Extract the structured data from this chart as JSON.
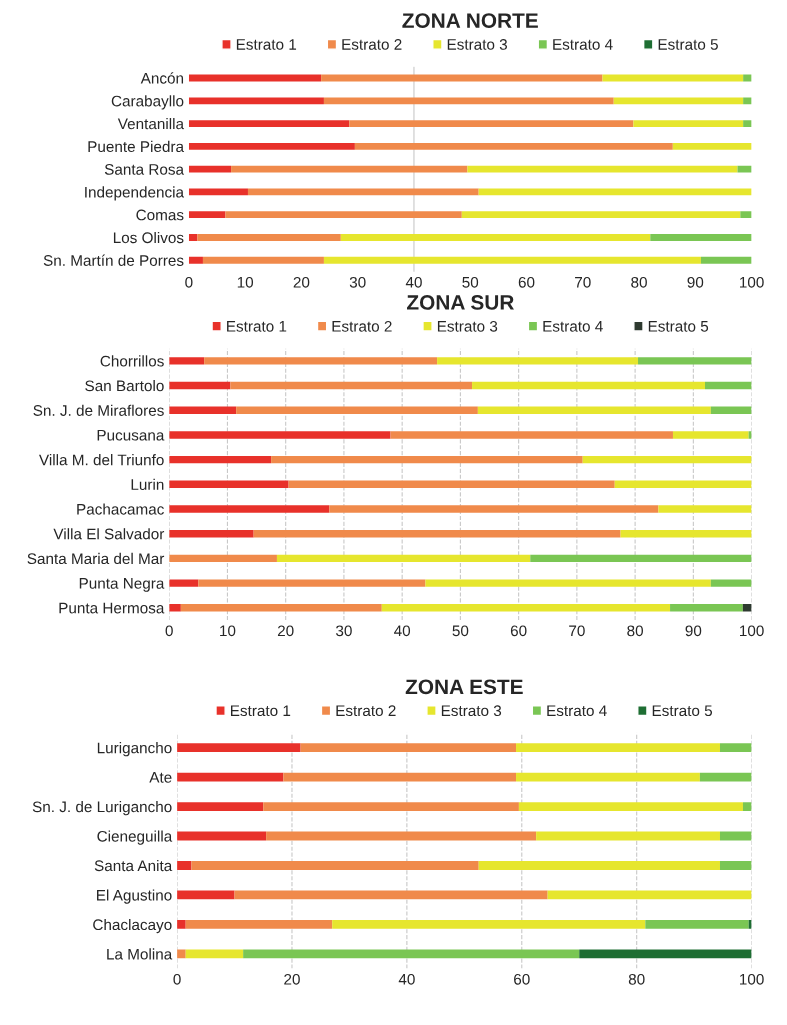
{
  "chart_data": [
    {
      "type": "bar",
      "orientation": "horizontal",
      "stacked": true,
      "title": "ZONA NORTE",
      "legend": "top",
      "grid": false,
      "categories": [
        "Ancón",
        "Carabayllo",
        "Ventanilla",
        "Puente Piedra",
        "Santa Rosa",
        "Independencia",
        "Comas",
        "Los Olivos",
        "Sn. Martín de Porres"
      ],
      "xlim": [
        0,
        100
      ],
      "xticks": [
        0,
        10,
        20,
        30,
        40,
        50,
        60,
        70,
        80,
        90,
        100
      ],
      "ref_lines": [
        {
          "axis": "x",
          "value": 40,
          "color": "#c8c8c8"
        }
      ],
      "series": [
        {
          "name": "Estrato 1",
          "color": "#e8312a",
          "values": [
            23.5,
            24,
            28.5,
            29.5,
            7.5,
            10.5,
            6.5,
            1.5,
            2.5
          ]
        },
        {
          "name": "Estrato 2",
          "color": "#f08a4b",
          "values": [
            50,
            51.5,
            50.5,
            56.5,
            42,
            41,
            42,
            25.5,
            21.5
          ]
        },
        {
          "name": "Estrato 3",
          "color": "#e6e62e",
          "values": [
            25,
            23,
            19.5,
            14,
            48,
            48.5,
            49.5,
            55,
            67
          ]
        },
        {
          "name": "Estrato 4",
          "color": "#7ac654",
          "values": [
            1.5,
            1.5,
            1.5,
            0,
            2.5,
            0,
            2,
            18,
            9
          ]
        },
        {
          "name": "Estrato 5",
          "color": "#1e6e33",
          "values": [
            0,
            0,
            0,
            0,
            0,
            0,
            0,
            0,
            0
          ]
        }
      ]
    },
    {
      "type": "bar",
      "orientation": "horizontal",
      "stacked": true,
      "title": "ZONA SUR",
      "legend": "top",
      "grid": "x",
      "categories": [
        "Chorrillos",
        "San Bartolo",
        "Sn. J. de Miraflores",
        "Pucusana",
        "Villa M. del Triunfo",
        "Lurin",
        "Pachacamac",
        "Villa El Salvador",
        "Santa Maria del Mar",
        "Punta Negra",
        "Punta Hermosa"
      ],
      "xlim": [
        0,
        100
      ],
      "xticks": [
        0,
        10,
        20,
        30,
        40,
        50,
        60,
        70,
        80,
        90,
        100
      ],
      "series": [
        {
          "name": "Estrato 1",
          "color": "#e8312a",
          "values": [
            6,
            10.5,
            11.5,
            38,
            17.5,
            20.5,
            27.5,
            14.5,
            0,
            5,
            2
          ]
        },
        {
          "name": "Estrato 2",
          "color": "#f08a4b",
          "values": [
            40,
            41.5,
            41.5,
            48.5,
            53.5,
            56,
            56.5,
            63,
            18.5,
            39,
            34.5
          ]
        },
        {
          "name": "Estrato 3",
          "color": "#e6e62e",
          "values": [
            34.5,
            40,
            40,
            13,
            29,
            23.5,
            16,
            22.5,
            43.5,
            49,
            49.5
          ]
        },
        {
          "name": "Estrato 4",
          "color": "#7ac654",
          "values": [
            19.5,
            8,
            7,
            0.5,
            0,
            0,
            0,
            0,
            38,
            7,
            12.5
          ]
        },
        {
          "name": "Estrato 5",
          "color": "#2e3a30",
          "values": [
            0,
            0,
            0,
            0,
            0,
            0,
            0,
            0,
            0,
            0,
            1.5
          ]
        }
      ]
    },
    {
      "type": "bar",
      "orientation": "horizontal",
      "stacked": true,
      "title": "ZONA ESTE",
      "legend": "top",
      "grid": "x",
      "categories": [
        "Lurigancho",
        "Ate",
        "Sn. J. de Lurigancho",
        "Cieneguilla",
        "Santa Anita",
        "El Agustino",
        "Chaclacayo",
        "La Molina"
      ],
      "xlim": [
        0,
        100
      ],
      "xticks": [
        0,
        20,
        40,
        60,
        80,
        100
      ],
      "series": [
        {
          "name": "Estrato 1",
          "color": "#e8312a",
          "values": [
            21.5,
            18.5,
            15,
            15.5,
            2.5,
            10,
            1.5,
            0
          ]
        },
        {
          "name": "Estrato 2",
          "color": "#f08a4b",
          "values": [
            37.5,
            40.5,
            44.5,
            47,
            50,
            54.5,
            25.5,
            1.5
          ]
        },
        {
          "name": "Estrato 3",
          "color": "#e6e62e",
          "values": [
            35.5,
            32,
            39,
            32,
            42,
            35.5,
            54.5,
            10
          ]
        },
        {
          "name": "Estrato 4",
          "color": "#7ac654",
          "values": [
            5.5,
            9,
            1.5,
            5.5,
            5.5,
            0,
            18,
            58.5
          ]
        },
        {
          "name": "Estrato 5",
          "color": "#1e6e33",
          "values": [
            0,
            0,
            0,
            0,
            0,
            0,
            0.5,
            30
          ]
        }
      ]
    }
  ]
}
